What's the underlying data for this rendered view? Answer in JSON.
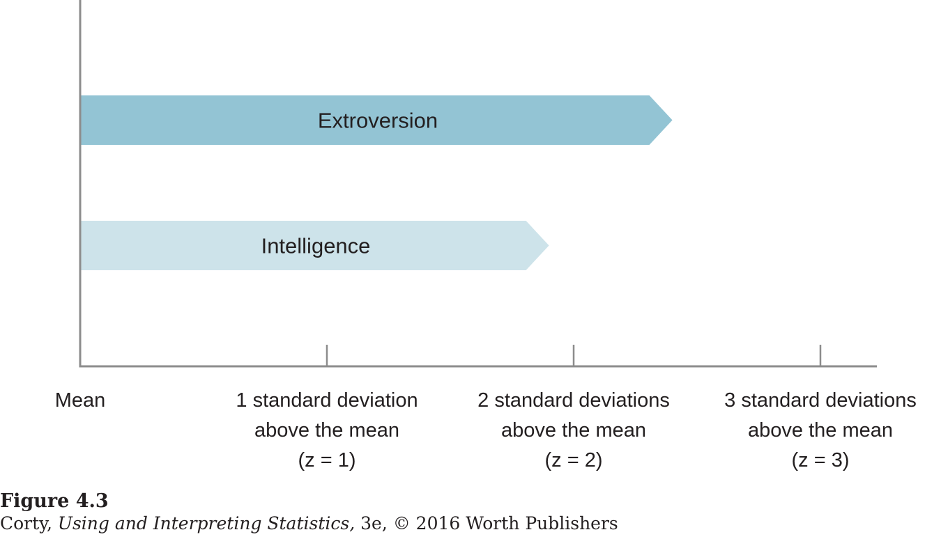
{
  "chart_data": {
    "type": "bar",
    "orientation": "horizontal",
    "categories": [
      "Extroversion",
      "Intelligence"
    ],
    "values": [
      2.4,
      1.9
    ],
    "xlim": [
      0,
      3.3
    ],
    "ticks": [
      {
        "value": 0,
        "lines": [
          "Mean"
        ]
      },
      {
        "value": 1,
        "lines": [
          "1 standard deviation",
          "above the mean",
          "(z = 1)"
        ]
      },
      {
        "value": 2,
        "lines": [
          "2 standard deviations",
          "above the mean",
          "(z = 2)"
        ]
      },
      {
        "value": 3,
        "lines": [
          "3 standard deviations",
          "above the mean",
          "(z = 3)"
        ]
      }
    ],
    "bar_colors": [
      "#93c4d4",
      "#cde3ea"
    ],
    "axis_color": "#8c8c8c",
    "grid": false,
    "legend": "none"
  },
  "caption": {
    "figure_label": "Figure 4.3",
    "author": "Corty, ",
    "book_title": "Using and Interpreting Statistics,",
    "edition_publisher": " 3e, © 2016 Worth Publishers"
  }
}
